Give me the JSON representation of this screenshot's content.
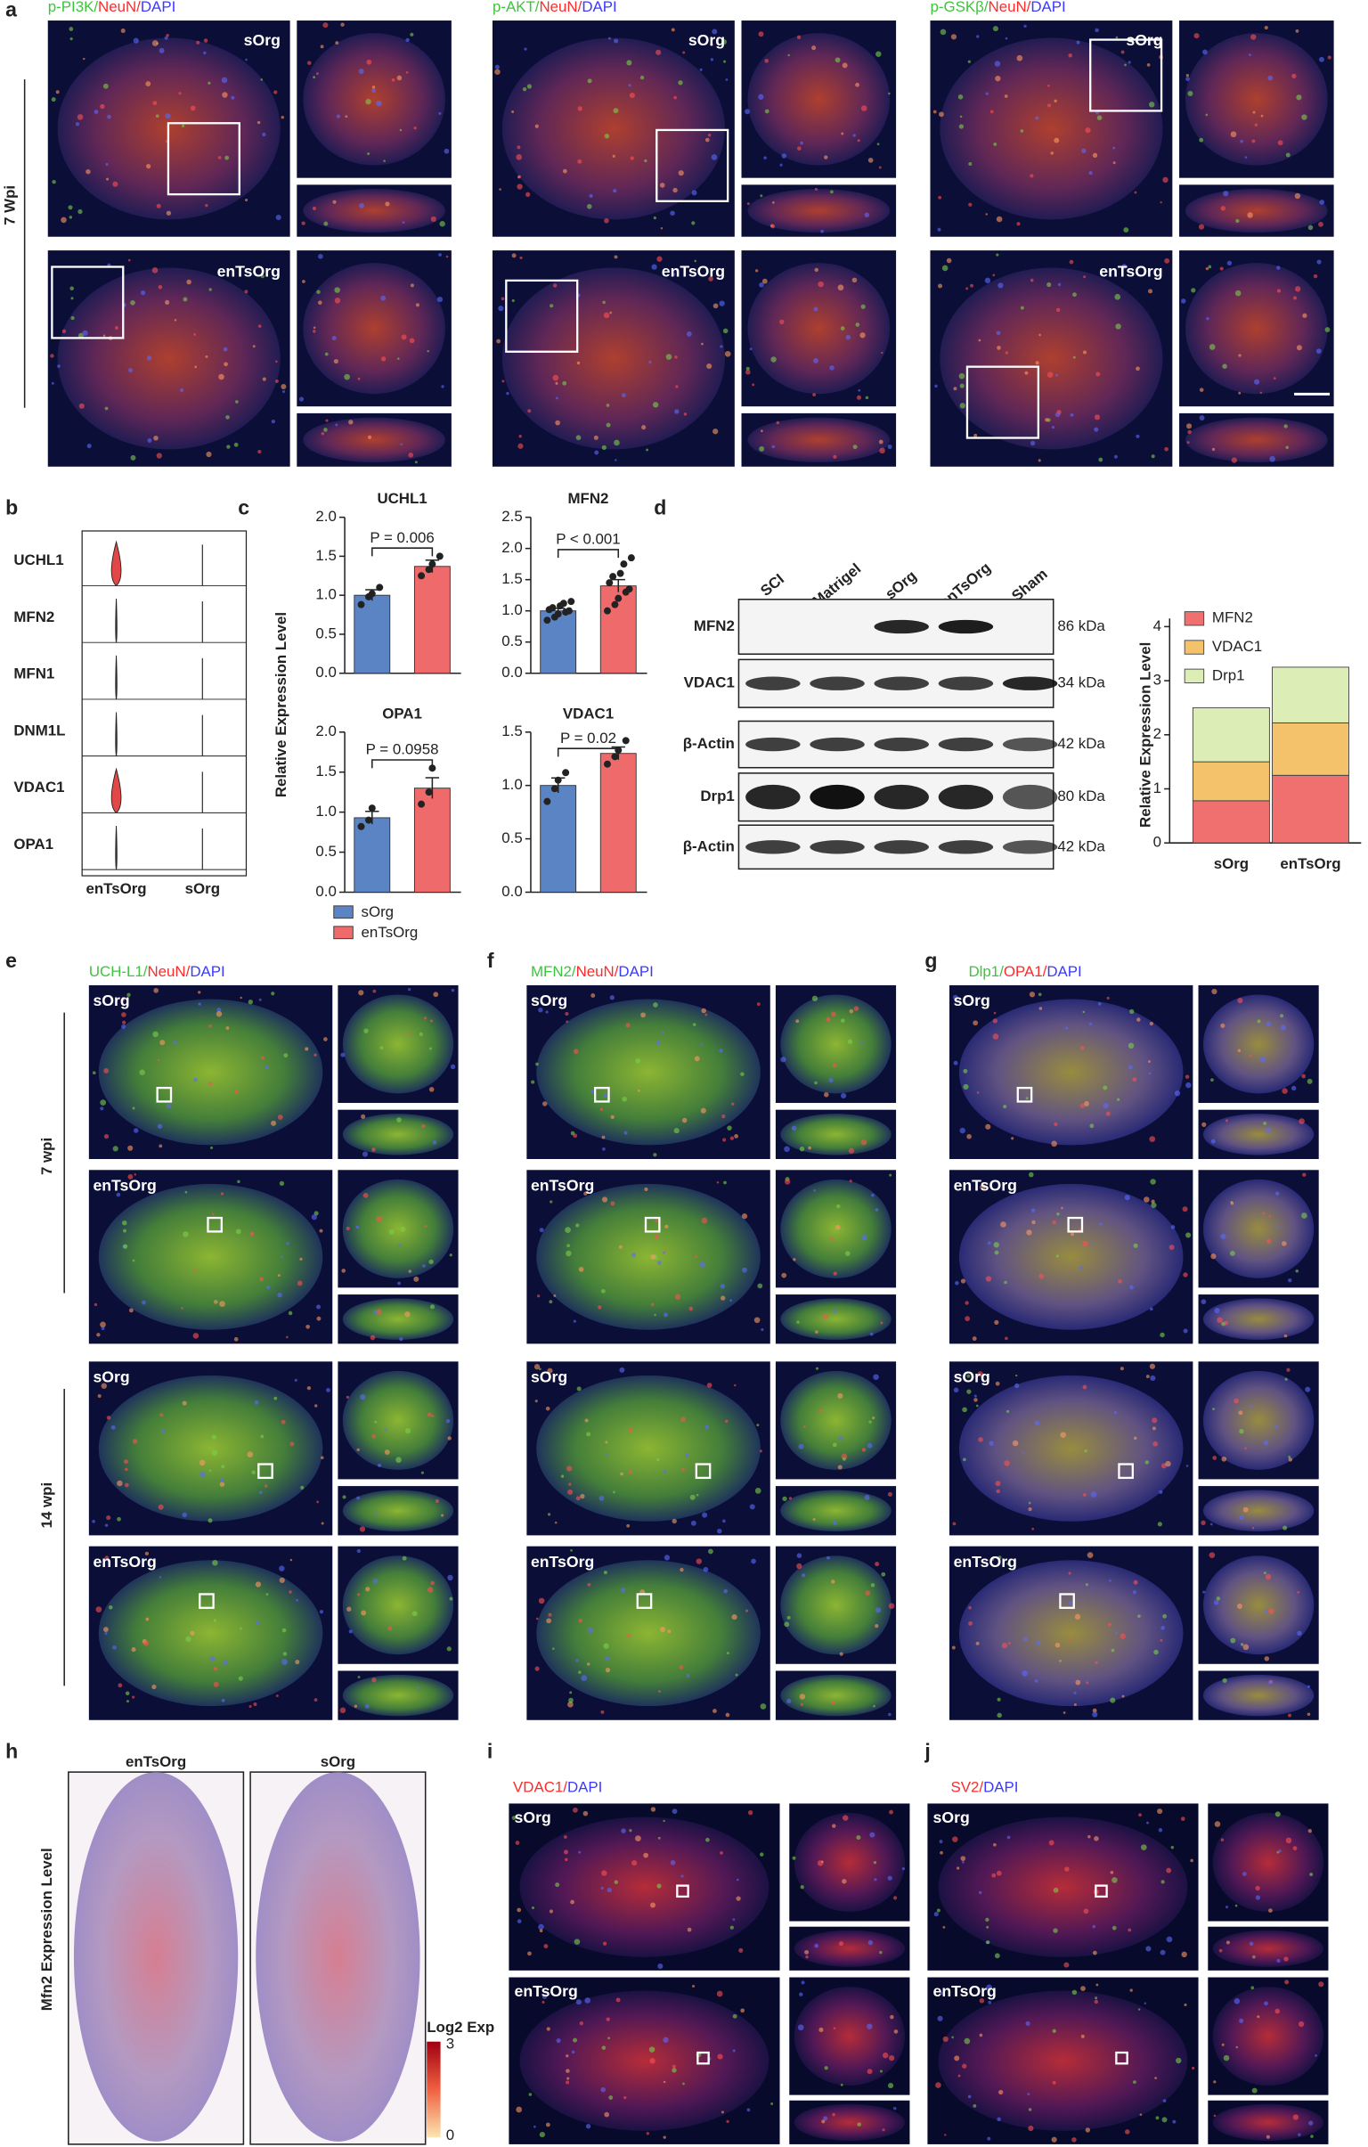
{
  "panel_a": {
    "label": "a",
    "side_label": "7 Wpi",
    "top_label": "sOrg",
    "bottom_label": "enTsOrg",
    "stains": [
      [
        {
          "text": "p-PI3K/",
          "color": "#3ec43e"
        },
        {
          "text": "NeuN/",
          "color": "#ff2a2a"
        },
        {
          "text": "DAPI",
          "color": "#3a3aff"
        }
      ],
      [
        {
          "text": "p-AKT/",
          "color": "#3ec43e"
        },
        {
          "text": "NeuN/",
          "color": "#ff2a2a"
        },
        {
          "text": "DAPI",
          "color": "#3a3aff"
        }
      ],
      [
        {
          "text": "p-GSKβ/",
          "color": "#3ec43e"
        },
        {
          "text": "NeuN/",
          "color": "#ff2a2a"
        },
        {
          "text": "DAPI",
          "color": "#3a3aff"
        }
      ]
    ]
  },
  "panel_b": {
    "label": "b",
    "genes": [
      "UCHL1",
      "MFN2",
      "MFN1",
      "DNM1L",
      "VDAC1",
      "OPA1"
    ],
    "groups": [
      "enTsOrg",
      "sOrg"
    ]
  },
  "panel_c": {
    "label": "c",
    "y_label": "Relative Expression Level"
  },
  "panel_d": {
    "label": "d",
    "lanes": [
      "SCI",
      "Matrigel",
      "sOrg",
      "enTsOrg",
      "Sham"
    ],
    "rows": [
      {
        "name": "MFN2",
        "size": "86 kDa"
      },
      {
        "name": "VDAC1",
        "size": "34 kDa"
      },
      {
        "name": "β-Actin",
        "size": "42 kDa"
      },
      {
        "name": "Drp1",
        "size": "80 kDa"
      },
      {
        "name": "β-Actin",
        "size": "42 kDa"
      }
    ]
  },
  "panel_e": {
    "label": "e",
    "stain": [
      {
        "text": "UCH-L1/",
        "color": "#3ec43e"
      },
      {
        "text": "NeuN/",
        "color": "#ff2a2a"
      },
      {
        "text": "DAPI",
        "color": "#3a3aff"
      }
    ],
    "rows": [
      "sOrg",
      "enTsOrg",
      "sOrg",
      "enTsOrg"
    ],
    "side_labels": [
      "7 wpi",
      "14 wpi"
    ]
  },
  "panel_f": {
    "label": "f",
    "stain": [
      {
        "text": "MFN2/",
        "color": "#3ec43e"
      },
      {
        "text": "NeuN/",
        "color": "#ff2a2a"
      },
      {
        "text": "DAPI",
        "color": "#3a3aff"
      }
    ],
    "rows": [
      "sOrg",
      "enTsOrg",
      "sOrg",
      "enTsOrg"
    ]
  },
  "panel_g": {
    "label": "g",
    "stain": [
      {
        "text": "Dlp1/",
        "color": "#3ec43e"
      },
      {
        "text": "OPA1/",
        "color": "#ff2a2a"
      },
      {
        "text": "DAPI",
        "color": "#3a3aff"
      }
    ],
    "rows": [
      "sOrg",
      "enTsOrg",
      "sOrg",
      "enTsOrg"
    ]
  },
  "panel_h": {
    "label": "h",
    "columns": [
      "enTsOrg",
      "sOrg"
    ],
    "y_label": "Mfn2 Expression Level",
    "colorbar": {
      "title": "Log2 Exp",
      "ticks": [
        3,
        0
      ]
    }
  },
  "panel_i": {
    "label": "i",
    "stain": [
      {
        "text": "VDAC1/",
        "color": "#ff2a2a"
      },
      {
        "text": "DAPI",
        "color": "#3a3aff"
      }
    ],
    "rows": [
      "sOrg",
      "enTsOrg"
    ]
  },
  "panel_j": {
    "label": "j",
    "stain": [
      {
        "text": "SV2/",
        "color": "#ff2a2a"
      },
      {
        "text": "DAPI",
        "color": "#3a3aff"
      }
    ],
    "rows": [
      "sOrg",
      "enTsOrg"
    ]
  },
  "chart_data": [
    {
      "type": "bar",
      "title": "UCHL1",
      "p_label": "P = 0.006",
      "ylim": [
        0,
        2
      ],
      "yticks": [
        {
          "value": 0,
          "label": "0.0"
        },
        {
          "value": 0.5,
          "label": "0.5"
        },
        {
          "value": 1,
          "label": "1.0"
        },
        {
          "value": 1.5,
          "label": "1.5"
        },
        {
          "value": 2,
          "label": "2.0"
        }
      ],
      "series": [
        {
          "name": "sOrg",
          "color": "#5b84c4",
          "values": [
            1.0
          ],
          "errors": [
            0.07
          ],
          "points": [
            0.88,
            0.98,
            1.02,
            1.1
          ]
        },
        {
          "name": "enTsOrg",
          "color": "#ef6b6b",
          "values": [
            1.37
          ],
          "errors": [
            0.08
          ],
          "points": [
            1.25,
            1.33,
            1.4,
            1.5
          ]
        }
      ]
    },
    {
      "type": "bar",
      "title": "MFN2",
      "p_label": "P < 0.001",
      "ylim": [
        0,
        2.5
      ],
      "yticks": [
        {
          "value": 0,
          "label": "0.0"
        },
        {
          "value": 0.5,
          "label": "0.5"
        },
        {
          "value": 1,
          "label": "1.0"
        },
        {
          "value": 1.5,
          "label": "1.5"
        },
        {
          "value": 2,
          "label": "2.0"
        },
        {
          "value": 2.5,
          "label": "2.5"
        }
      ],
      "series": [
        {
          "name": "sOrg",
          "color": "#5b84c4",
          "values": [
            1.0
          ],
          "errors": [
            0.04
          ],
          "points": [
            0.85,
            0.9,
            0.95,
            0.98,
            1.0,
            1.02,
            1.05,
            1.08,
            1.12,
            1.15
          ]
        },
        {
          "name": "enTsOrg",
          "color": "#ef6b6b",
          "values": [
            1.4
          ],
          "errors": [
            0.1
          ],
          "points": [
            1.0,
            1.1,
            1.2,
            1.3,
            1.35,
            1.45,
            1.55,
            1.6,
            1.75,
            1.85
          ]
        }
      ]
    },
    {
      "type": "bar",
      "title": "OPA1",
      "p_label": "P = 0.0958",
      "ylim": [
        0,
        2
      ],
      "yticks": [
        {
          "value": 0,
          "label": "0.0"
        },
        {
          "value": 0.5,
          "label": "0.5"
        },
        {
          "value": 1,
          "label": "1.0"
        },
        {
          "value": 1.5,
          "label": "1.5"
        },
        {
          "value": 2,
          "label": "2.0"
        }
      ],
      "series": [
        {
          "name": "sOrg",
          "color": "#5b84c4",
          "values": [
            0.93
          ],
          "errors": [
            0.08
          ],
          "points": [
            0.82,
            0.9,
            1.05
          ]
        },
        {
          "name": "enTsOrg",
          "color": "#ef6b6b",
          "values": [
            1.3
          ],
          "errors": [
            0.13
          ],
          "points": [
            1.1,
            1.25,
            1.55
          ]
        }
      ]
    },
    {
      "type": "bar",
      "title": "VDAC1",
      "p_label": "P = 0.02",
      "ylim": [
        0,
        1.5
      ],
      "yticks": [
        {
          "value": 0,
          "label": "0.0"
        },
        {
          "value": 0.5,
          "label": "0.5"
        },
        {
          "value": 1,
          "label": "1.0"
        },
        {
          "value": 1.5,
          "label": "1.5"
        }
      ],
      "series": [
        {
          "name": "sOrg",
          "color": "#5b84c4",
          "values": [
            1.0
          ],
          "errors": [
            0.07
          ],
          "points": [
            0.85,
            0.97,
            1.05,
            1.12
          ]
        },
        {
          "name": "enTsOrg",
          "color": "#ef6b6b",
          "values": [
            1.3
          ],
          "errors": [
            0.06
          ],
          "points": [
            1.2,
            1.27,
            1.33,
            1.42
          ]
        }
      ]
    },
    {
      "type": "stacked-bar",
      "y_label": "Relative Expression Level",
      "categories": [
        "sOrg",
        "enTsOrg"
      ],
      "ylim": [
        0,
        4.15
      ],
      "yticks": [
        0,
        1,
        2,
        3,
        4
      ],
      "series": [
        {
          "name": "MFN2",
          "color": "#f07070",
          "values": [
            0.78,
            1.25
          ]
        },
        {
          "name": "VDAC1",
          "color": "#f3c26b",
          "values": [
            0.72,
            0.97
          ]
        },
        {
          "name": "Drp1",
          "color": "#dcedb5",
          "values": [
            1.0,
            1.03
          ]
        }
      ]
    }
  ]
}
